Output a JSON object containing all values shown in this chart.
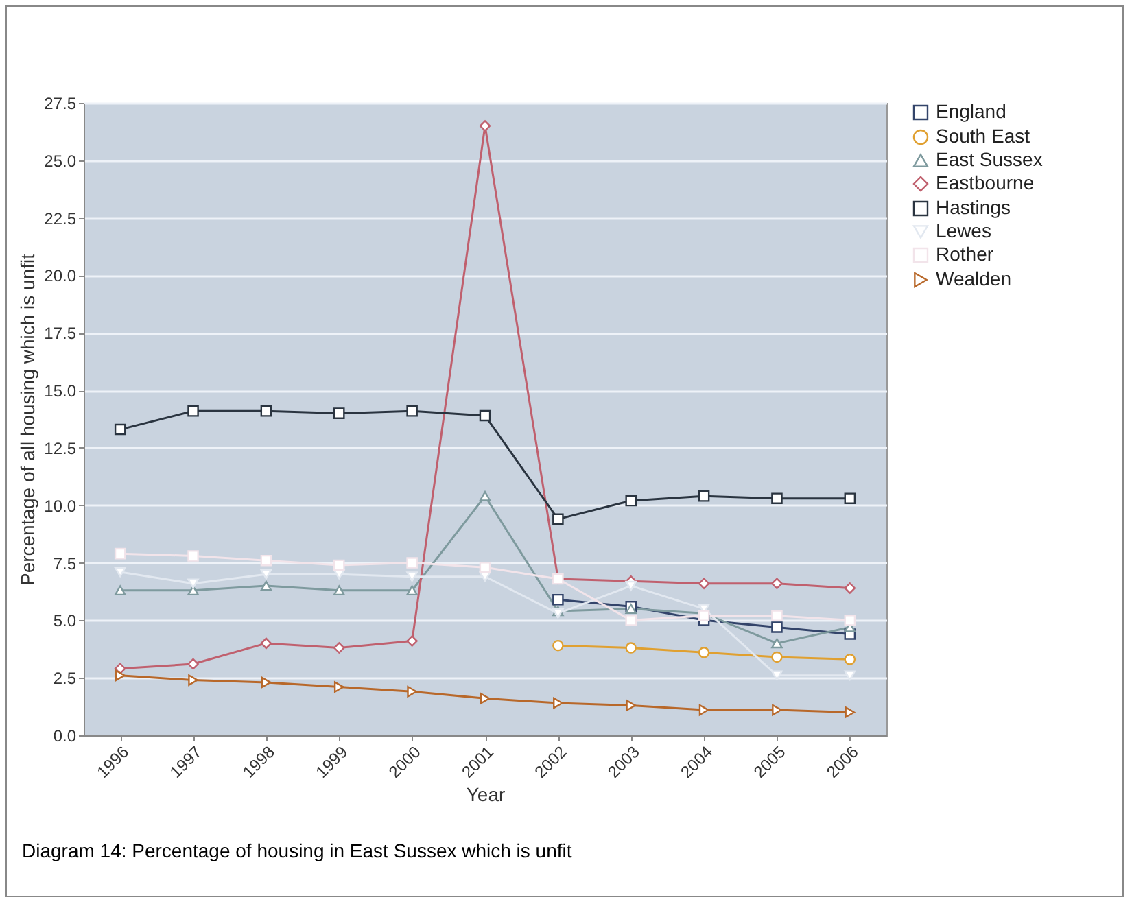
{
  "chart_data": {
    "type": "line",
    "xlabel": "Year",
    "ylabel": "Percentage of all housing which is unfit",
    "annotations": [
      "Diagram 14: Percentage of housing in East Sussex which is unfit"
    ],
    "categories": [
      "1996",
      "1997",
      "1998",
      "1999",
      "2000",
      "2001",
      "2002",
      "2003",
      "2004",
      "2005",
      "2006"
    ],
    "ylim": [
      0,
      27.5
    ],
    "yticks": [
      {
        "value": 0,
        "label": "0.0"
      },
      {
        "value": 2.5,
        "label": "2.5"
      },
      {
        "value": 5,
        "label": "5.0"
      },
      {
        "value": 7.5,
        "label": "7.5"
      },
      {
        "value": 10,
        "label": "10.0"
      },
      {
        "value": 12.5,
        "label": "12.5"
      },
      {
        "value": 15,
        "label": "15.0"
      },
      {
        "value": 17.5,
        "label": "17.5"
      },
      {
        "value": 20,
        "label": "20.0"
      },
      {
        "value": 22.5,
        "label": "22.5"
      },
      {
        "value": 25,
        "label": "25.0"
      },
      {
        "value": 27.5,
        "label": "27.5"
      }
    ],
    "grid": "y",
    "legend": "right",
    "series": [
      {
        "name": "England",
        "color": "#33446a",
        "marker": "square",
        "values": [
          null,
          null,
          null,
          null,
          null,
          null,
          5.9,
          5.6,
          5.0,
          4.7,
          4.4
        ]
      },
      {
        "name": "South East",
        "color": "#e0a030",
        "marker": "circle",
        "values": [
          null,
          null,
          null,
          null,
          null,
          null,
          3.9,
          3.8,
          3.6,
          3.4,
          3.3
        ]
      },
      {
        "name": "East Sussex",
        "color": "#7e9a9e",
        "marker": "triangle",
        "values": [
          6.3,
          6.3,
          6.5,
          6.3,
          6.3,
          10.4,
          5.4,
          5.5,
          5.3,
          4.0,
          4.7
        ]
      },
      {
        "name": "Eastbourne",
        "color": "#c0606e",
        "marker": "diamond",
        "values": [
          2.9,
          3.1,
          4.0,
          3.8,
          4.1,
          26.5,
          6.8,
          6.7,
          6.6,
          6.6,
          6.4
        ]
      },
      {
        "name": "Hastings",
        "color": "#2a3440",
        "marker": "square",
        "values": [
          13.3,
          14.1,
          14.1,
          14.0,
          14.1,
          13.9,
          9.4,
          10.2,
          10.4,
          10.3,
          10.3
        ]
      },
      {
        "name": "Lewes",
        "color": "#e2e8f0",
        "marker": "triangle-down",
        "values": [
          7.1,
          6.6,
          7.0,
          7.0,
          6.9,
          6.9,
          5.3,
          6.5,
          5.5,
          2.6,
          2.6
        ]
      },
      {
        "name": "Rother",
        "color": "#f2e4ea",
        "marker": "square",
        "values": [
          7.9,
          7.8,
          7.6,
          7.4,
          7.5,
          7.3,
          6.8,
          5.0,
          5.2,
          5.2,
          5.0
        ]
      },
      {
        "name": "Wealden",
        "color": "#b8682a",
        "marker": "triangle-right",
        "values": [
          2.6,
          2.4,
          2.3,
          2.1,
          1.9,
          1.6,
          1.4,
          1.3,
          1.1,
          1.1,
          1.0
        ]
      }
    ]
  }
}
